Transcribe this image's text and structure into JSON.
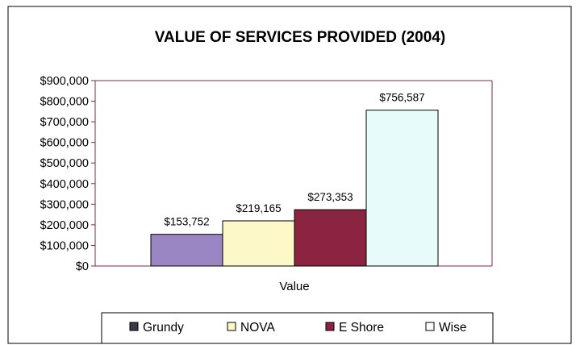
{
  "chart_data": {
    "type": "bar",
    "title": "VALUE OF SERVICES PROVIDED (2004)",
    "xlabel": "Value",
    "ylabel": "",
    "categories": [
      "Value"
    ],
    "series": [
      {
        "name": "Grundy",
        "values": [
          153752
        ],
        "label": "$153,752",
        "color": "#9b86c4"
      },
      {
        "name": "NOVA",
        "values": [
          219165
        ],
        "label": "$219,165",
        "color": "#fcf8c8"
      },
      {
        "name": "E Shore",
        "values": [
          273353
        ],
        "label": "$273,353",
        "color": "#8b2440"
      },
      {
        "name": "Wise",
        "values": [
          756587
        ],
        "label": "$756,587",
        "color": "#e8fbfb"
      }
    ],
    "legend_markers": [
      "#3a3a4a",
      "#fcf8c8",
      "#8b2440",
      "#ffffff"
    ],
    "ylim": [
      0,
      900000
    ],
    "ytick_values": [
      0,
      100000,
      200000,
      300000,
      400000,
      500000,
      600000,
      700000,
      800000,
      900000
    ],
    "ytick_labels": [
      "$0",
      "$100,000",
      "$200,000",
      "$300,000",
      "$400,000",
      "$500,000",
      "$600,000",
      "$700,000",
      "$800,000",
      "$900,000"
    ],
    "grid": false,
    "legend_position": "bottom"
  }
}
